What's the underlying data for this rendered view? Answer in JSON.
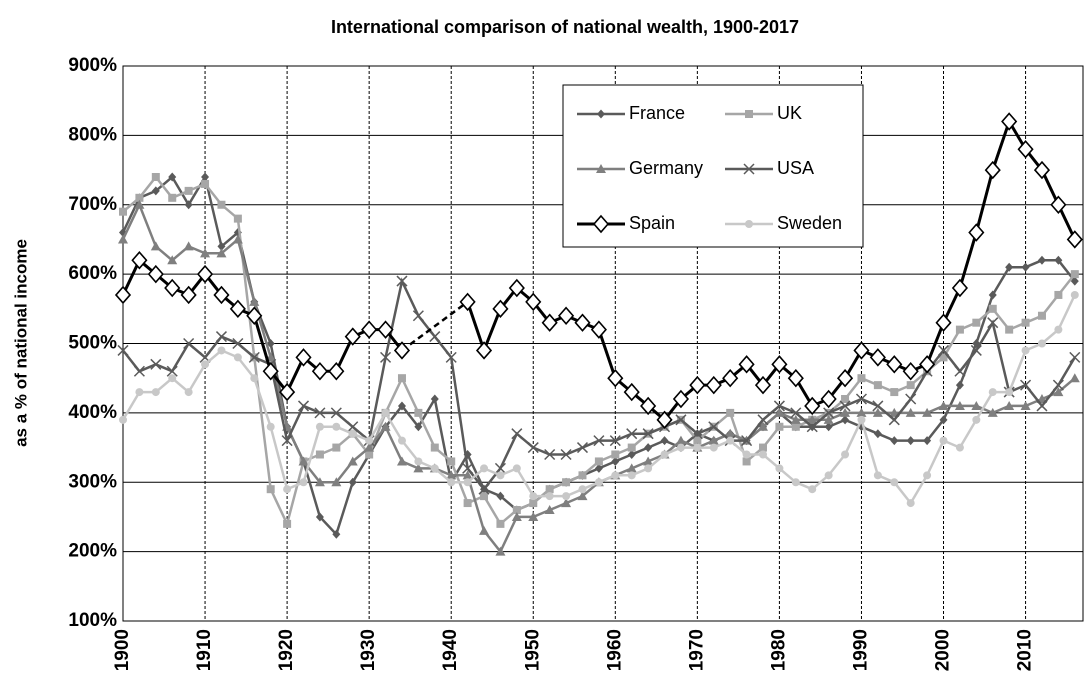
{
  "chart_data": {
    "type": "line",
    "title": "International comparison of national wealth, 1900-2017",
    "y_label": "as a % of national income",
    "x": [
      1900,
      1902,
      1904,
      1906,
      1908,
      1910,
      1912,
      1914,
      1916,
      1918,
      1920,
      1922,
      1924,
      1926,
      1928,
      1930,
      1932,
      1934,
      1936,
      1938,
      1940,
      1942,
      1944,
      1946,
      1948,
      1950,
      1952,
      1954,
      1956,
      1958,
      1960,
      1962,
      1964,
      1966,
      1968,
      1970,
      1972,
      1974,
      1976,
      1978,
      1980,
      1982,
      1984,
      1986,
      1988,
      1990,
      1992,
      1994,
      1996,
      1998,
      2000,
      2002,
      2004,
      2006,
      2008,
      2010,
      2012,
      2014,
      2016
    ],
    "xlim": [
      1900,
      2017
    ],
    "xticks": [
      1900,
      1910,
      1920,
      1930,
      1940,
      1950,
      1960,
      1970,
      1980,
      1990,
      2000,
      2010
    ],
    "ylim": [
      100,
      900
    ],
    "yticks": [
      {
        "value": 100,
        "label": "100%"
      },
      {
        "value": 200,
        "label": "200%"
      },
      {
        "value": 300,
        "label": "300%"
      },
      {
        "value": 400,
        "label": "400%"
      },
      {
        "value": 500,
        "label": "500%"
      },
      {
        "value": 600,
        "label": "600%"
      },
      {
        "value": 700,
        "label": "700%"
      },
      {
        "value": 800,
        "label": "800%"
      },
      {
        "value": 900,
        "label": "900%"
      }
    ],
    "grid": true,
    "legend": "upper center",
    "series": [
      {
        "name": "France",
        "color": "#5a5a5a",
        "marker": "diamond",
        "values": [
          660,
          710,
          720,
          740,
          700,
          740,
          640,
          660,
          560,
          500,
          380,
          330,
          250,
          225,
          300,
          340,
          380,
          410,
          380,
          420,
          300,
          340,
          290,
          280,
          260,
          270,
          290,
          300,
          310,
          320,
          330,
          340,
          350,
          360,
          350,
          370,
          360,
          370,
          360,
          380,
          400,
          380,
          380,
          380,
          390,
          380,
          370,
          360,
          360,
          360,
          390,
          440,
          500,
          570,
          610,
          610,
          620,
          620,
          590
        ]
      },
      {
        "name": "UK",
        "color": "#a6a6a6",
        "marker": "square",
        "values": [
          690,
          710,
          740,
          710,
          720,
          730,
          700,
          680,
          480,
          290,
          240,
          330,
          340,
          350,
          370,
          340,
          400,
          450,
          400,
          350,
          330,
          270,
          280,
          240,
          260,
          270,
          290,
          300,
          310,
          330,
          340,
          350,
          370,
          380,
          390,
          360,
          380,
          400,
          330,
          350,
          380,
          380,
          390,
          400,
          420,
          450,
          440,
          430,
          440,
          460,
          480,
          520,
          530,
          550,
          520,
          530,
          540,
          570,
          600
        ]
      },
      {
        "name": "Germany",
        "color": "#7f7f7f",
        "marker": "triangle",
        "values": [
          650,
          700,
          640,
          620,
          640,
          630,
          630,
          650,
          560,
          480,
          380,
          330,
          300,
          300,
          330,
          350,
          380,
          330,
          320,
          320,
          310,
          310,
          230,
          200,
          250,
          250,
          260,
          270,
          280,
          300,
          310,
          320,
          330,
          340,
          360,
          350,
          360,
          370,
          360,
          380,
          400,
          390,
          390,
          390,
          400,
          400,
          400,
          400,
          400,
          400,
          410,
          410,
          410,
          400,
          410,
          410,
          420,
          430,
          450
        ]
      },
      {
        "name": "USA",
        "color": "#5a5a5a",
        "marker": "cross",
        "values": [
          490,
          460,
          470,
          460,
          500,
          480,
          510,
          500,
          480,
          470,
          360,
          410,
          400,
          400,
          380,
          360,
          480,
          590,
          540,
          510,
          480,
          320,
          290,
          320,
          370,
          350,
          340,
          340,
          350,
          360,
          360,
          370,
          370,
          380,
          390,
          370,
          380,
          360,
          360,
          390,
          410,
          400,
          380,
          400,
          410,
          420,
          410,
          390,
          420,
          460,
          490,
          460,
          490,
          530,
          430,
          440,
          410,
          440,
          480
        ]
      },
      {
        "name": "Spain",
        "color": "#000000",
        "marker": "open-diamond",
        "gap_style": "dashed",
        "values": [
          570,
          620,
          600,
          580,
          570,
          600,
          570,
          550,
          540,
          460,
          430,
          480,
          460,
          460,
          510,
          520,
          520,
          490,
          null,
          null,
          null,
          560,
          490,
          550,
          580,
          560,
          530,
          540,
          530,
          520,
          450,
          430,
          410,
          390,
          420,
          440,
          440,
          450,
          470,
          440,
          470,
          450,
          410,
          420,
          450,
          490,
          480,
          470,
          460,
          470,
          530,
          580,
          660,
          750,
          820,
          780,
          750,
          700,
          650
        ]
      },
      {
        "name": "Sweden",
        "color": "#c8c8c8",
        "marker": "circle",
        "values": [
          390,
          430,
          430,
          450,
          430,
          470,
          490,
          480,
          450,
          380,
          290,
          300,
          380,
          380,
          370,
          360,
          400,
          360,
          330,
          320,
          300,
          300,
          320,
          310,
          320,
          280,
          280,
          280,
          290,
          300,
          310,
          310,
          320,
          340,
          350,
          350,
          350,
          360,
          340,
          340,
          320,
          300,
          290,
          310,
          340,
          390,
          310,
          300,
          270,
          310,
          360,
          350,
          390,
          430,
          430,
          490,
          500,
          520,
          570
        ]
      }
    ]
  }
}
